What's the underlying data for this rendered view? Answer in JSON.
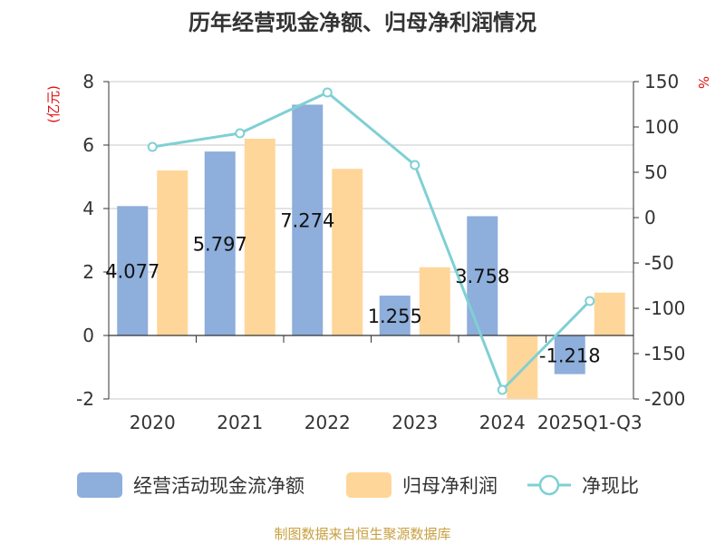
{
  "chart_data": {
    "type": "bar",
    "title": "历年经营现金净额、归母净利润情况",
    "categories": [
      "2020",
      "2021",
      "2022",
      "2023",
      "2024",
      "2025Q1-Q3"
    ],
    "series": [
      {
        "name": "经营活动现金流净额",
        "type": "bar",
        "axis": "left",
        "color": "#8eaedb",
        "values": [
          4.077,
          5.797,
          7.274,
          1.255,
          3.758,
          -1.218
        ],
        "labels": [
          "4.077",
          "5.797",
          "7.274",
          "1.255",
          "3.758",
          "-1.218"
        ]
      },
      {
        "name": "归母净利润",
        "type": "bar",
        "axis": "left",
        "color": "#ffd699",
        "values": [
          5.2,
          6.2,
          5.25,
          2.15,
          -2.0,
          1.35
        ]
      },
      {
        "name": "净现比",
        "type": "line",
        "axis": "right",
        "color": "#7fd0d4",
        "values": [
          78,
          93,
          138,
          58,
          -190,
          -92
        ]
      }
    ],
    "y_left": {
      "unit": "(亿元)",
      "ylim": [
        -2,
        8
      ],
      "ticks": [
        -2,
        0,
        2,
        4,
        6,
        8
      ]
    },
    "y_right": {
      "unit": "%",
      "ylim": [
        -200,
        150
      ],
      "ticks": [
        -200,
        -150,
        -100,
        -50,
        0,
        50,
        100,
        150
      ]
    },
    "grid": true,
    "legend_position": "bottom"
  },
  "source": "制图数据来自恒生聚源数据库"
}
